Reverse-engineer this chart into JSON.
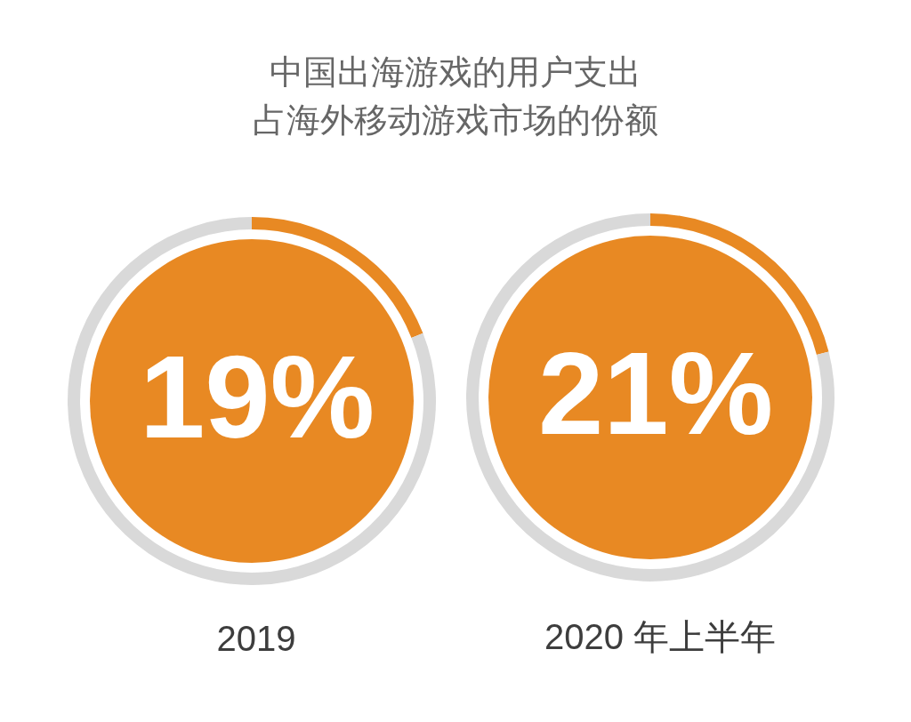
{
  "chart_data": [
    {
      "type": "other",
      "title": "中国出海游戏的用户支出占海外移动游戏市场的份额"
    },
    {
      "type": "donut",
      "xlabel": "2019",
      "categories": [
        null,
        null
      ],
      "values": [
        19,
        81
      ],
      "colors": [
        "#e88923",
        "#d9d9d9"
      ],
      "value_labels": [
        "19%",
        null
      ]
    },
    {
      "type": "donut",
      "xlabel": "2020 年上半年",
      "categories": [
        null,
        null
      ],
      "values": [
        21,
        79
      ],
      "colors": [
        "#e88923",
        "#d9d9d9"
      ],
      "value_labels": [
        "21%",
        null
      ]
    }
  ]
}
